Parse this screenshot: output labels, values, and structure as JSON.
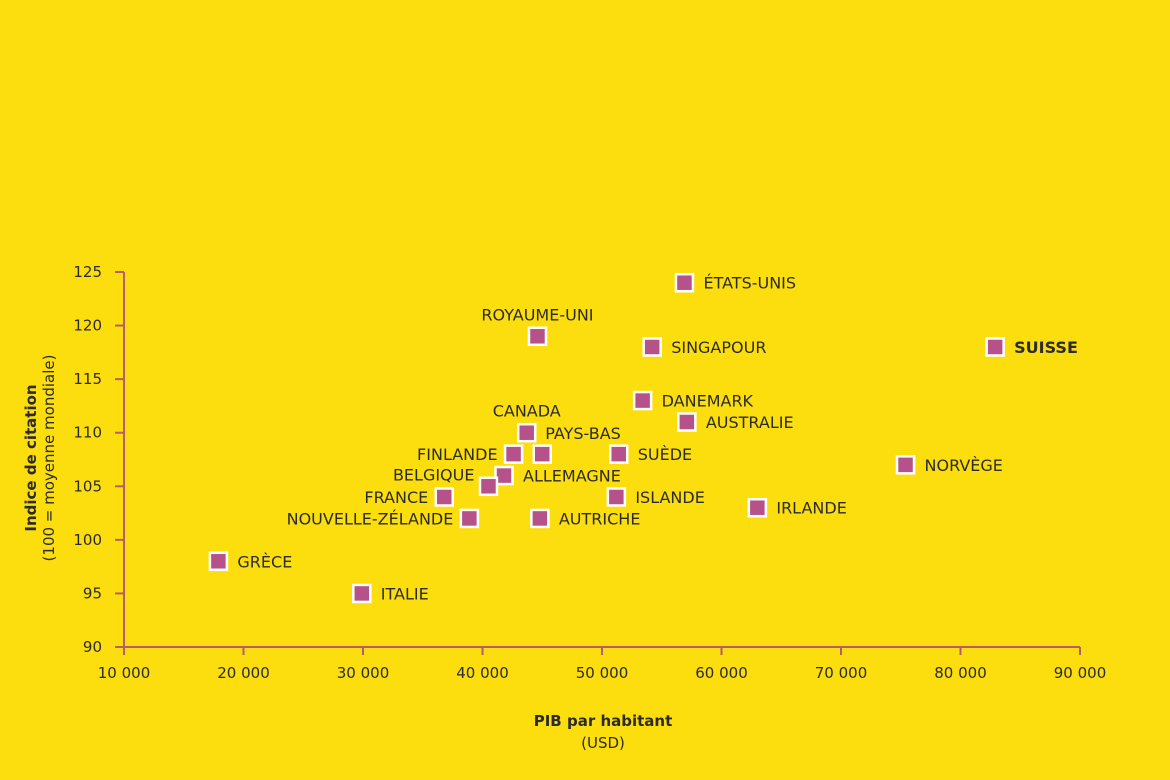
{
  "chart_data": {
    "type": "scatter",
    "xlabel": "PIB par habitant",
    "xlabel_unit": "(USD)",
    "ylabel": "Indice de citation",
    "ylabel_unit": "(100 = moyenne mondiale)",
    "xlim": [
      10000,
      90000
    ],
    "ylim": [
      90,
      125
    ],
    "x_ticks": [
      10000,
      20000,
      30000,
      40000,
      50000,
      60000,
      70000,
      80000,
      90000
    ],
    "x_tick_labels": [
      "10 000",
      "20 000",
      "30 000",
      "40 000",
      "50 000",
      "60 000",
      "70 000",
      "80 000",
      "90 000"
    ],
    "y_ticks": [
      90,
      95,
      100,
      105,
      110,
      115,
      120,
      125
    ],
    "y_tick_labels": [
      "90",
      "95",
      "100",
      "105",
      "110",
      "115",
      "120",
      "125"
    ],
    "grid": false,
    "marker_color": "#B5528A",
    "marker_edge": "#FFFFFF",
    "background": "#FCDE0F",
    "axis_color": "#B85C6A",
    "points": [
      {
        "label": "ÉTATS-UNIS",
        "x": 56900,
        "y": 124,
        "label_pos": "right",
        "bold": false
      },
      {
        "label": "ROYAUME-UNI",
        "x": 44600,
        "y": 119,
        "label_pos": "above",
        "bold": false
      },
      {
        "label": "SINGAPOUR",
        "x": 54200,
        "y": 118,
        "label_pos": "right",
        "bold": false
      },
      {
        "label": "SUISSE",
        "x": 82900,
        "y": 118,
        "label_pos": "right",
        "bold": true
      },
      {
        "label": "DANEMARK",
        "x": 53400,
        "y": 113,
        "label_pos": "right",
        "bold": false
      },
      {
        "label": "AUSTRALIE",
        "x": 57100,
        "y": 111,
        "label_pos": "right",
        "bold": false
      },
      {
        "label": "CANADA",
        "x": 43700,
        "y": 110,
        "label_pos": "above",
        "bold": false
      },
      {
        "label": "PAYS-BAS",
        "x": 45000,
        "y": 108,
        "label_pos": "above-right",
        "bold": false
      },
      {
        "label": "FINLANDE",
        "x": 42600,
        "y": 108,
        "label_pos": "left",
        "bold": false
      },
      {
        "label": "SUÈDE",
        "x": 51400,
        "y": 108,
        "label_pos": "right",
        "bold": false
      },
      {
        "label": "ALLEMAGNE",
        "x": 41800,
        "y": 106,
        "label_pos": "right",
        "bold": false
      },
      {
        "label": "BELGIQUE",
        "x": 40500,
        "y": 105,
        "label_pos": "above-left",
        "bold": false
      },
      {
        "label": "NORVÈGE",
        "x": 75400,
        "y": 107,
        "label_pos": "right",
        "bold": false
      },
      {
        "label": "FRANCE",
        "x": 36800,
        "y": 104,
        "label_pos": "left",
        "bold": false
      },
      {
        "label": "ISLANDE",
        "x": 51200,
        "y": 104,
        "label_pos": "right",
        "bold": false
      },
      {
        "label": "IRLANDE",
        "x": 63000,
        "y": 103,
        "label_pos": "right",
        "bold": false
      },
      {
        "label": "NOUVELLE-ZÉLANDE",
        "x": 38900,
        "y": 102,
        "label_pos": "left",
        "bold": false
      },
      {
        "label": "AUTRICHE",
        "x": 44800,
        "y": 102,
        "label_pos": "right",
        "bold": false
      },
      {
        "label": "GRÈCE",
        "x": 17900,
        "y": 98,
        "label_pos": "right",
        "bold": false
      },
      {
        "label": "ITALIE",
        "x": 29900,
        "y": 95,
        "label_pos": "right",
        "bold": false
      }
    ]
  }
}
